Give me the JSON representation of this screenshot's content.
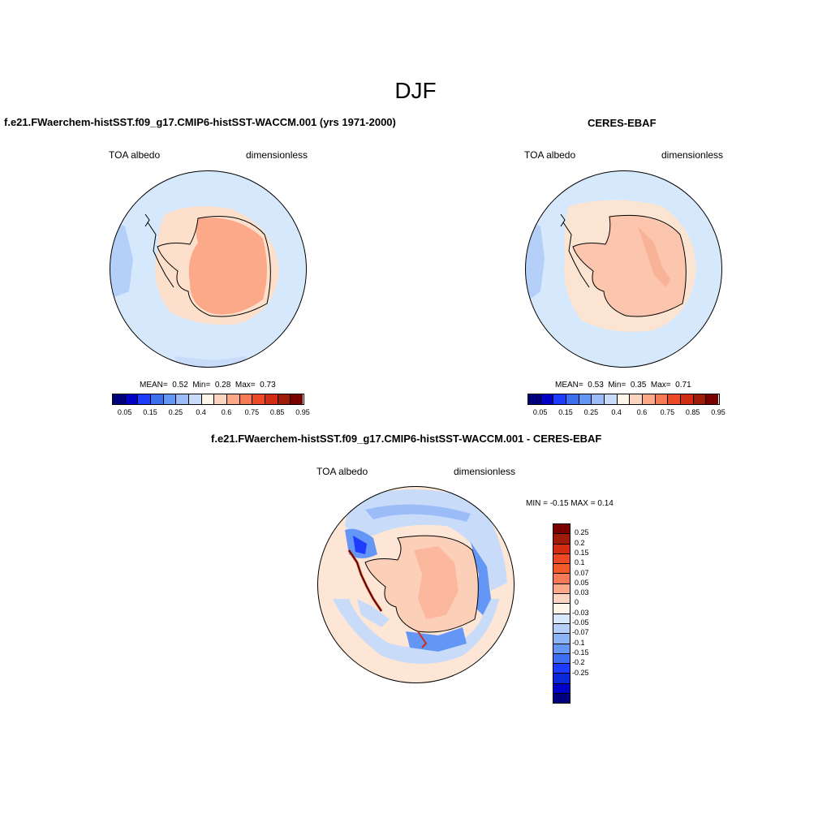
{
  "main_title": "DJF",
  "panels": [
    {
      "title": "f.e21.FWaerchem-histSST.f09_g17.CMIP6-histSST-WACCM.001 (yrs 1971-2000)",
      "variable": "TOA albedo",
      "units": "dimensionless",
      "stats": {
        "mean_label": "MEAN=",
        "mean": "0.52",
        "min_label": "Min=",
        "min": "0.28",
        "max_label": "Max=",
        "max": "0.73"
      }
    },
    {
      "title": "CERES-EBAF",
      "variable": "TOA albedo",
      "units": "dimensionless",
      "stats": {
        "mean_label": "MEAN=",
        "mean": "0.53",
        "min_label": "Min=",
        "min": "0.35",
        "max_label": "Max=",
        "max": "0.71"
      }
    }
  ],
  "diff_panel": {
    "title": "f.e21.FWaerchem-histSST.f09_g17.CMIP6-histSST-WACCM.001 - CERES-EBAF",
    "variable": "TOA albedo",
    "units": "dimensionless",
    "minmax_text": "MIN =  -0.15 MAX =   0.14"
  },
  "colorbar_abs": {
    "colors": [
      "#00007f",
      "#0000c8",
      "#1e3cff",
      "#3c6ef0",
      "#6496f5",
      "#9bbcf7",
      "#c8dcfa",
      "#fff5eb",
      "#fcd5c0",
      "#fca98a",
      "#f77a56",
      "#ec4a26",
      "#d22d12",
      "#a01a08",
      "#7a0000"
    ],
    "tick_labels": [
      "0.05",
      "0.15",
      "0.25",
      "0.4",
      "0.6",
      "0.75",
      "0.85",
      "0.95"
    ]
  },
  "colorbar_diff": {
    "colors": [
      "#7a0000",
      "#a01a08",
      "#d22d12",
      "#ec4a26",
      "#f25a2a",
      "#f77a56",
      "#fca98a",
      "#fcd5c0",
      "#fff5eb",
      "#d8e8fa",
      "#b4d0f8",
      "#8cb4f5",
      "#6496f5",
      "#3c6ef0",
      "#1e3cff",
      "#0a28d8",
      "#0000c8",
      "#00007f"
    ],
    "tick_labels": [
      "0.25",
      "0.2",
      "0.15",
      "0.1",
      "0.07",
      "0.05",
      "0.03",
      "0",
      "-0.03",
      "-0.05",
      "-0.07",
      "-0.1",
      "-0.15",
      "-0.2",
      "-0.25"
    ]
  }
}
